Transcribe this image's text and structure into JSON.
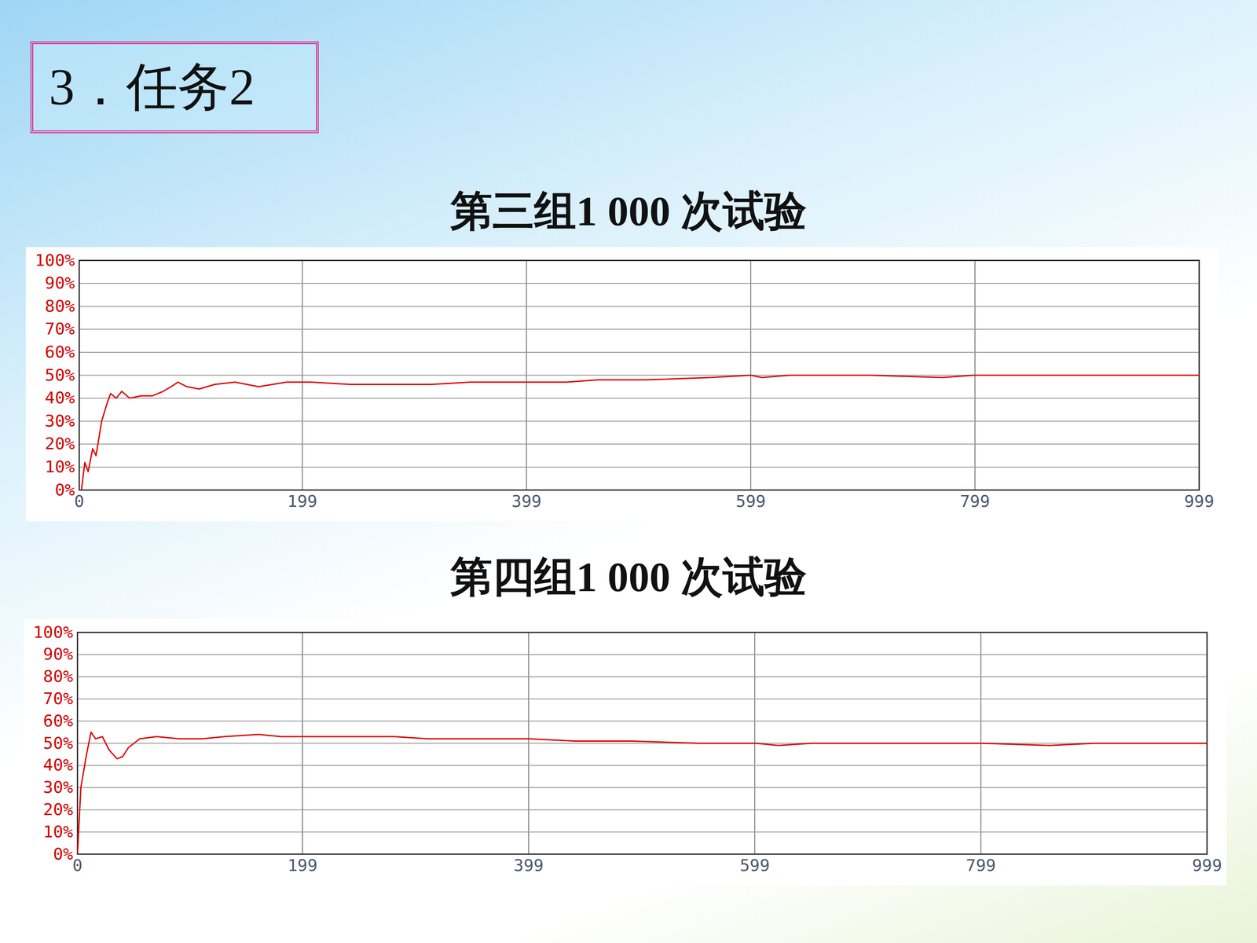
{
  "slide_title": "3．任务2",
  "chart_data": [
    {
      "type": "line",
      "title": "第三组1 000 次试验",
      "color": "#dd0000",
      "grid": true,
      "x": [
        0,
        2,
        5,
        8,
        12,
        15,
        20,
        25,
        28,
        33,
        38,
        45,
        55,
        65,
        75,
        82,
        88,
        96,
        107,
        121,
        139,
        160,
        185,
        207,
        242,
        278,
        314,
        349,
        385,
        435,
        463,
        506,
        563,
        599,
        609,
        634,
        706,
        770,
        798,
        850,
        900,
        999
      ],
      "values": [
        0,
        0,
        12,
        8,
        18,
        15,
        30,
        38,
        42,
        40,
        43,
        40,
        41,
        41,
        43,
        45,
        47,
        45,
        44,
        46,
        47,
        45,
        47,
        47,
        46,
        46,
        46,
        47,
        47,
        47,
        48,
        48,
        49,
        50,
        49,
        50,
        50,
        49,
        50,
        50,
        50,
        50
      ],
      "xlim": [
        0,
        999
      ],
      "xticks": [
        0,
        199,
        399,
        599,
        799,
        999
      ],
      "ylim": [
        0,
        100
      ],
      "yticks": [
        {
          "value": 0,
          "label": "0%"
        },
        {
          "value": 10,
          "label": "10%"
        },
        {
          "value": 20,
          "label": "20%"
        },
        {
          "value": 30,
          "label": "30%"
        },
        {
          "value": 40,
          "label": "40%"
        },
        {
          "value": 50,
          "label": "50%"
        },
        {
          "value": 60,
          "label": "60%"
        },
        {
          "value": 70,
          "label": "70%"
        },
        {
          "value": 80,
          "label": "80%"
        },
        {
          "value": 90,
          "label": "90%"
        },
        {
          "value": 100,
          "label": "100%"
        }
      ]
    },
    {
      "type": "line",
      "title": "第四组1 000 次试验",
      "color": "#dd0000",
      "grid": true,
      "x": [
        0,
        3,
        8,
        12,
        16,
        22,
        28,
        35,
        40,
        45,
        55,
        70,
        90,
        110,
        130,
        160,
        180,
        220,
        250,
        280,
        310,
        350,
        400,
        440,
        490,
        550,
        600,
        620,
        650,
        800,
        860,
        900,
        999
      ],
      "values": [
        0,
        30,
        45,
        55,
        52,
        53,
        47,
        43,
        44,
        48,
        52,
        53,
        52,
        52,
        53,
        54,
        53,
        53,
        53,
        53,
        52,
        52,
        52,
        51,
        51,
        50,
        50,
        49,
        50,
        50,
        49,
        50,
        50
      ],
      "xlim": [
        0,
        999
      ],
      "xticks": [
        0,
        199,
        399,
        599,
        799,
        999
      ],
      "ylim": [
        0,
        100
      ],
      "yticks": [
        {
          "value": 0,
          "label": "0%"
        },
        {
          "value": 10,
          "label": "10%"
        },
        {
          "value": 20,
          "label": "20%"
        },
        {
          "value": 30,
          "label": "30%"
        },
        {
          "value": 40,
          "label": "40%"
        },
        {
          "value": 50,
          "label": "50%"
        },
        {
          "value": 60,
          "label": "60%"
        },
        {
          "value": 70,
          "label": "70%"
        },
        {
          "value": 80,
          "label": "80%"
        },
        {
          "value": 90,
          "label": "90%"
        },
        {
          "value": 100,
          "label": "100%"
        }
      ]
    }
  ]
}
